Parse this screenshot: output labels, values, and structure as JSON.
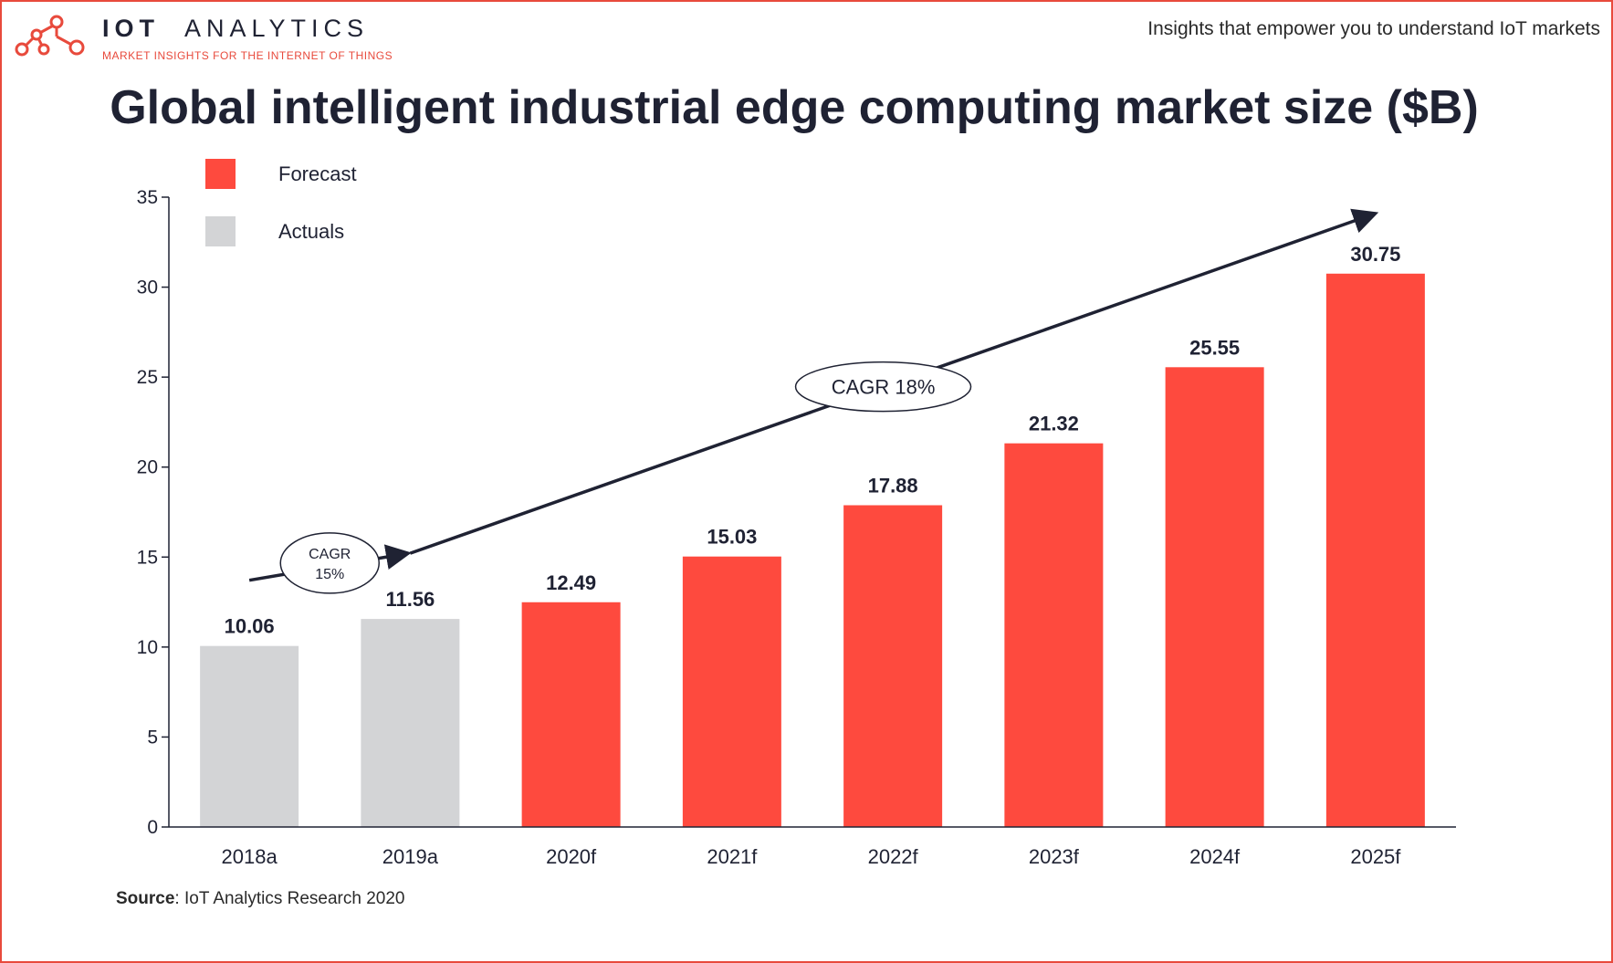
{
  "brand": {
    "name_bold": "IOT",
    "name_regular": "ANALYTICS",
    "tagline": "MARKET INSIGHTS FOR THE INTERNET OF THINGS",
    "logo_icon": "network-nodes-icon"
  },
  "header_tagline": "Insights that empower you to understand IoT markets",
  "source": {
    "label": "Source",
    "text": ": IoT Analytics Research 2020"
  },
  "colors": {
    "forecast": "#fe4a3e",
    "actuals": "#d3d4d6",
    "text": "#1f2233",
    "brand_red": "#e84a3c"
  },
  "chart_data": {
    "type": "bar",
    "title": "Global intelligent industrial edge computing market size ($B)",
    "categories": [
      "2018a",
      "2019a",
      "2020f",
      "2021f",
      "2022f",
      "2023f",
      "2024f",
      "2025f"
    ],
    "values": [
      10.06,
      11.56,
      12.49,
      15.03,
      17.88,
      21.32,
      25.55,
      30.75
    ],
    "value_labels": [
      "10.06",
      "11.56",
      "12.49",
      "15.03",
      "17.88",
      "21.32",
      "25.55",
      "30.75"
    ],
    "series_by_category": [
      "Actuals",
      "Actuals",
      "Forecast",
      "Forecast",
      "Forecast",
      "Forecast",
      "Forecast",
      "Forecast"
    ],
    "legend": [
      {
        "name": "Forecast",
        "color": "#fe4a3e"
      },
      {
        "name": "Actuals",
        "color": "#d3d4d6"
      }
    ],
    "legend_position": "top-left",
    "ylim": [
      0,
      35
    ],
    "yticks": [
      0,
      5,
      10,
      15,
      20,
      25,
      30,
      35
    ],
    "ytick_labels": [
      "0",
      "5",
      "10",
      "15",
      "20",
      "25",
      "30",
      "35"
    ],
    "grid": false,
    "xlabel": "",
    "ylabel": "",
    "annotations": [
      {
        "text_lines": [
          "CAGR",
          "15%"
        ],
        "from_category": "2018a",
        "to_category": "2019a"
      },
      {
        "text_lines": [
          "CAGR 18%"
        ],
        "from_category": "2019a",
        "to_category": "2025f"
      }
    ]
  }
}
